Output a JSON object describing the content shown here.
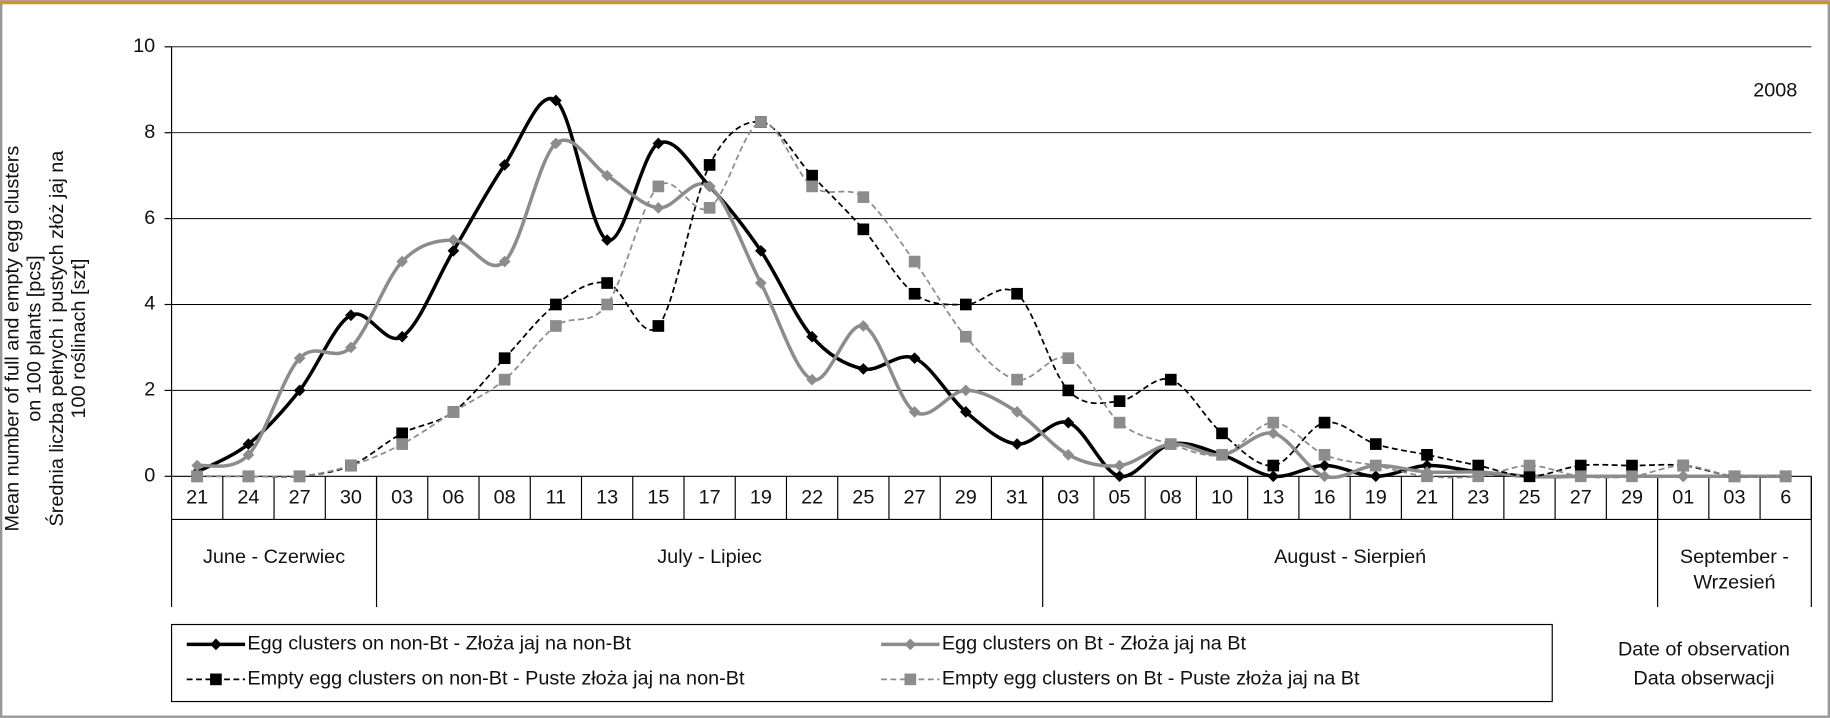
{
  "chart_data": {
    "type": "line",
    "annotation": "2008",
    "ylabel": [
      "Mean number  of full and empty egg clusters",
      "on 100 plants [pcs]",
      "Średnia liczba pełnych i pustych złóż jaj na",
      "100 roślinach [szt]"
    ],
    "xlabel": [
      "Date of observation",
      "Data obserwacji"
    ],
    "categories": [
      "21",
      "24",
      "27",
      "30",
      "03",
      "06",
      "08",
      "11",
      "13",
      "15",
      "17",
      "19",
      "22",
      "25",
      "27",
      "29",
      "31",
      "03",
      "05",
      "08",
      "10",
      "13",
      "16",
      "19",
      "21",
      "23",
      "25",
      "27",
      "29",
      "01",
      "03",
      "6"
    ],
    "groups": [
      {
        "label": [
          "June - Czerwiec"
        ],
        "count": 4
      },
      {
        "label": [
          "July - Lipiec"
        ],
        "count": 13
      },
      {
        "label": [
          "August - Sierpień"
        ],
        "count": 12
      },
      {
        "label": [
          "September -",
          "Wrzesień"
        ],
        "count": 3
      }
    ],
    "ylim": [
      0,
      10
    ],
    "yticks": [
      0,
      2,
      4,
      6,
      8,
      10
    ],
    "grid": true,
    "series": [
      {
        "name": "Egg clusters on non-Bt - Złoża jaj na non-Bt",
        "color": "#000000",
        "dash": false,
        "marker": "diamond",
        "values": [
          0.1,
          0.75,
          2,
          3.75,
          3.25,
          5.25,
          7.25,
          8.75,
          5.5,
          7.75,
          6.75,
          5.25,
          3.25,
          2.5,
          2.75,
          1.5,
          0.75,
          1.25,
          0,
          0.75,
          0.5,
          0,
          0.25,
          0,
          0.25,
          0.1,
          0,
          0,
          0,
          0,
          0,
          0
        ]
      },
      {
        "name": "Egg clusters on Bt - Złoża jaj na Bt",
        "color": "#8c8c8c",
        "dash": false,
        "marker": "diamond",
        "values": [
          0.25,
          0.5,
          2.75,
          3,
          5,
          5.5,
          5,
          7.75,
          7,
          6.25,
          6.75,
          4.5,
          2.25,
          3.5,
          1.5,
          2,
          1.5,
          0.5,
          0.25,
          0.75,
          0.5,
          1,
          0,
          0.25,
          0.1,
          0.1,
          0,
          0,
          0,
          0,
          0,
          0
        ]
      },
      {
        "name": "Empty egg clusters on non-Bt - Puste złoża jaj na non-Bt",
        "color": "#000000",
        "dash": true,
        "marker": "square",
        "values": [
          0,
          0,
          0,
          0.25,
          1,
          1.5,
          2.75,
          4,
          4.5,
          3.5,
          7.25,
          8.25,
          7,
          5.75,
          4.25,
          4,
          4.25,
          2,
          1.75,
          2.25,
          1,
          0.25,
          1.25,
          0.75,
          0.5,
          0.25,
          0,
          0.25,
          0.25,
          0.25,
          0,
          0
        ]
      },
      {
        "name": "Empty egg clusters on Bt - Puste złoża jaj na Bt",
        "color": "#8c8c8c",
        "dash": true,
        "marker": "square",
        "values": [
          0,
          0,
          0,
          0.25,
          0.75,
          1.5,
          2.25,
          3.5,
          4,
          6.75,
          6.25,
          8.25,
          6.75,
          6.5,
          5,
          3.25,
          2.25,
          2.75,
          1.25,
          0.75,
          0.5,
          1.25,
          0.5,
          0.25,
          0,
          0,
          0.25,
          0,
          0,
          0.25,
          0,
          0
        ]
      }
    ]
  }
}
